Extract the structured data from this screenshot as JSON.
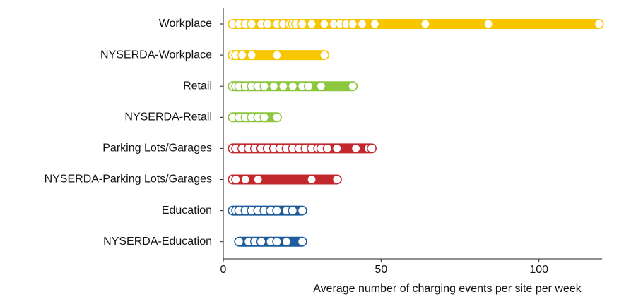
{
  "chart_data": {
    "type": "strip",
    "x_label": "Average number of charging events per site per week",
    "xlim": [
      0,
      120
    ],
    "xticks": [
      0,
      50,
      100
    ],
    "series": [
      {
        "name": "Workplace",
        "color": "#f7c600",
        "values": [
          3,
          5,
          7,
          9,
          12,
          14,
          17,
          19,
          21,
          22,
          23,
          25,
          28,
          32,
          35,
          37,
          39,
          41,
          44,
          48,
          64,
          84,
          119
        ]
      },
      {
        "name": "NYSERDA-Workplace",
        "color": "#f7c600",
        "values": [
          3,
          4,
          6,
          9,
          17,
          32
        ]
      },
      {
        "name": "Retail",
        "color": "#8dc63f",
        "values": [
          3,
          4,
          5,
          7,
          9,
          11,
          13,
          16,
          19,
          22,
          25,
          27,
          31,
          41
        ]
      },
      {
        "name": "NYSERDA-Retail",
        "color": "#8dc63f",
        "values": [
          3,
          5,
          7,
          9,
          11,
          13,
          17
        ]
      },
      {
        "name": "Parking Lots/Garages",
        "color": "#c1272d",
        "values": [
          3,
          4,
          6,
          8,
          10,
          12,
          14,
          16,
          18,
          20,
          22,
          24,
          26,
          28,
          30,
          31,
          33,
          36,
          42,
          46,
          47
        ]
      },
      {
        "name": "NYSERDA-Parking Lots/Garages",
        "color": "#c1272d",
        "values": [
          3,
          4,
          7,
          11,
          28,
          36
        ]
      },
      {
        "name": "Education",
        "color": "#1d5d9b",
        "values": [
          3,
          4,
          5,
          7,
          9,
          11,
          13,
          15,
          17,
          20,
          22,
          25
        ]
      },
      {
        "name": "NYSERDA-Education",
        "color": "#1d5d9b",
        "values": [
          5,
          8,
          10,
          12,
          15,
          17,
          20,
          25
        ]
      }
    ]
  }
}
